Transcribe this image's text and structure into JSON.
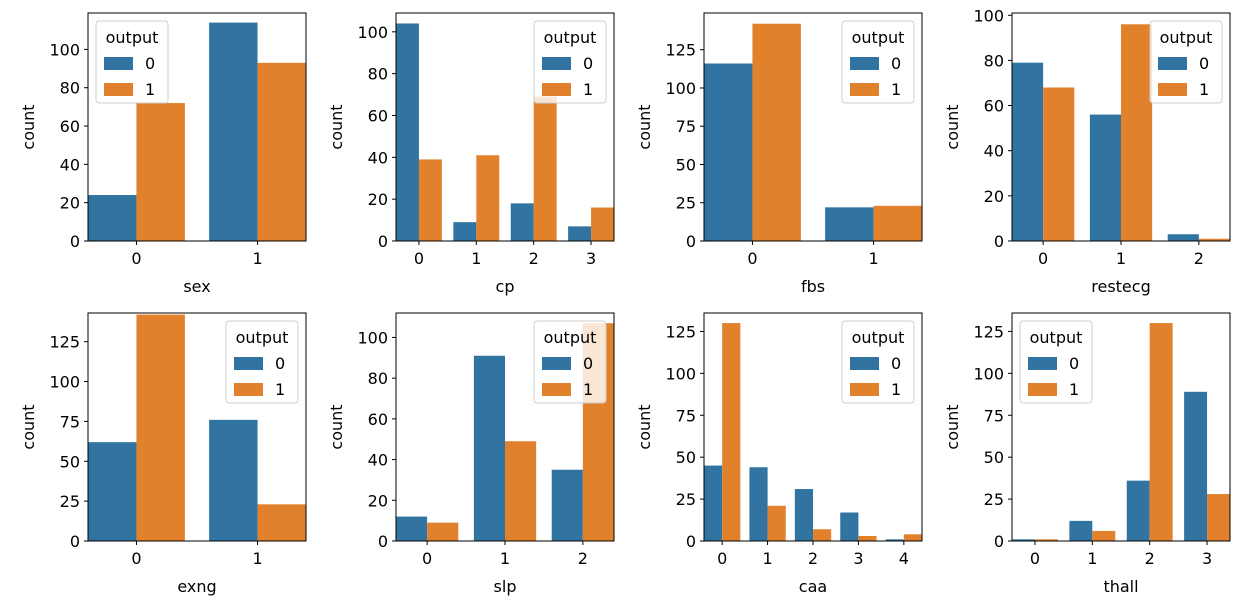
{
  "colors": {
    "output_0": "#3274a1",
    "output_1": "#e1812c"
  },
  "chart_data": [
    {
      "type": "bar",
      "xlabel": "sex",
      "ylabel": "count",
      "categories": [
        "0",
        "1"
      ],
      "ylim": [
        0,
        119
      ],
      "yticks": [
        0,
        20,
        40,
        60,
        80,
        100
      ],
      "legend": {
        "title": "output",
        "position": "upper-left"
      },
      "series": [
        {
          "name": "0",
          "values": [
            24,
            114
          ]
        },
        {
          "name": "1",
          "values": [
            72,
            93
          ]
        }
      ]
    },
    {
      "type": "bar",
      "xlabel": "cp",
      "ylabel": "count",
      "categories": [
        "0",
        "1",
        "2",
        "3"
      ],
      "ylim": [
        0,
        109
      ],
      "yticks": [
        0,
        20,
        40,
        60,
        80,
        100
      ],
      "legend": {
        "title": "output",
        "position": "upper-right"
      },
      "series": [
        {
          "name": "0",
          "values": [
            104,
            9,
            18,
            7
          ]
        },
        {
          "name": "1",
          "values": [
            39,
            41,
            69,
            16
          ]
        }
      ]
    },
    {
      "type": "bar",
      "xlabel": "fbs",
      "ylabel": "count",
      "categories": [
        "0",
        "1"
      ],
      "ylim": [
        0,
        149
      ],
      "yticks": [
        0,
        25,
        50,
        75,
        100,
        125
      ],
      "legend": {
        "title": "output",
        "position": "upper-right"
      },
      "series": [
        {
          "name": "0",
          "values": [
            116,
            22
          ]
        },
        {
          "name": "1",
          "values": [
            142,
            23
          ]
        }
      ]
    },
    {
      "type": "bar",
      "xlabel": "restecg",
      "ylabel": "count",
      "categories": [
        "0",
        "1",
        "2"
      ],
      "ylim": [
        0,
        101
      ],
      "yticks": [
        0,
        20,
        40,
        60,
        80,
        100
      ],
      "legend": {
        "title": "output",
        "position": "upper-right"
      },
      "series": [
        {
          "name": "0",
          "values": [
            79,
            56,
            3
          ]
        },
        {
          "name": "1",
          "values": [
            68,
            96,
            1
          ]
        }
      ]
    },
    {
      "type": "bar",
      "xlabel": "exng",
      "ylabel": "count",
      "categories": [
        "0",
        "1"
      ],
      "ylim": [
        0,
        143
      ],
      "yticks": [
        0,
        25,
        50,
        75,
        100,
        125
      ],
      "legend": {
        "title": "output",
        "position": "upper-right"
      },
      "series": [
        {
          "name": "0",
          "values": [
            62,
            76
          ]
        },
        {
          "name": "1",
          "values": [
            142,
            23
          ]
        }
      ]
    },
    {
      "type": "bar",
      "xlabel": "slp",
      "ylabel": "count",
      "categories": [
        "0",
        "1",
        "2"
      ],
      "ylim": [
        0,
        112
      ],
      "yticks": [
        0,
        20,
        40,
        60,
        80,
        100
      ],
      "legend": {
        "title": "output",
        "position": "upper-right"
      },
      "series": [
        {
          "name": "0",
          "values": [
            12,
            91,
            35
          ]
        },
        {
          "name": "1",
          "values": [
            9,
            49,
            107
          ]
        }
      ]
    },
    {
      "type": "bar",
      "xlabel": "caa",
      "ylabel": "count",
      "categories": [
        "0",
        "1",
        "2",
        "3",
        "4"
      ],
      "ylim": [
        0,
        136
      ],
      "yticks": [
        0,
        25,
        50,
        75,
        100,
        125
      ],
      "legend": {
        "title": "output",
        "position": "upper-right"
      },
      "series": [
        {
          "name": "0",
          "values": [
            45,
            44,
            31,
            17,
            1
          ]
        },
        {
          "name": "1",
          "values": [
            130,
            21,
            7,
            3,
            4
          ]
        }
      ]
    },
    {
      "type": "bar",
      "xlabel": "thall",
      "ylabel": "count",
      "categories": [
        "0",
        "1",
        "2",
        "3"
      ],
      "ylim": [
        0,
        136
      ],
      "yticks": [
        0,
        25,
        50,
        75,
        100,
        125
      ],
      "legend": {
        "title": "output",
        "position": "upper-left"
      },
      "series": [
        {
          "name": "0",
          "values": [
            1,
            12,
            36,
            89
          ]
        },
        {
          "name": "1",
          "values": [
            1,
            6,
            130,
            28
          ]
        }
      ]
    }
  ]
}
